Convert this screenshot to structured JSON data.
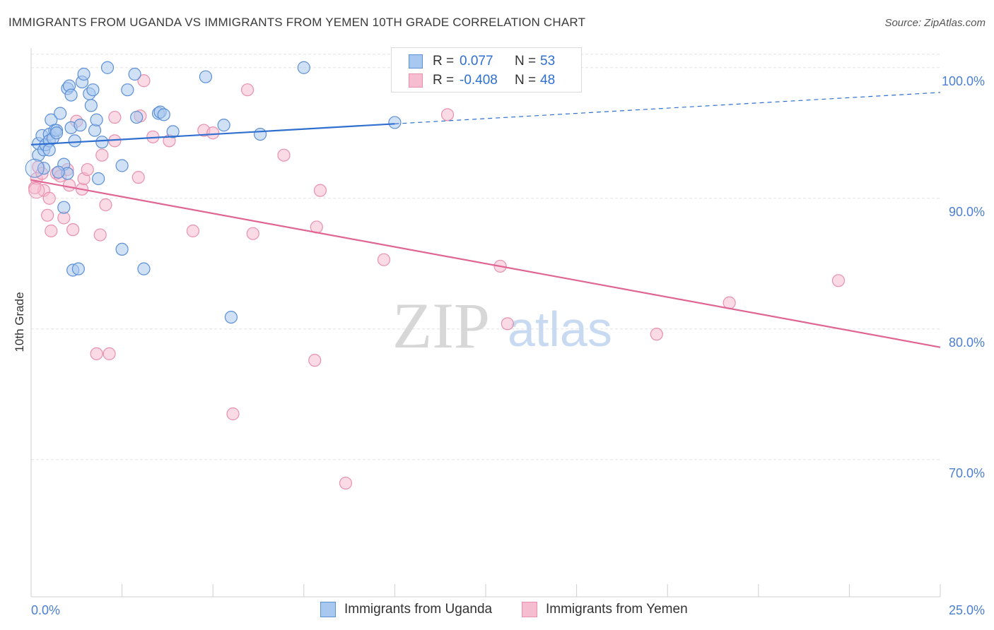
{
  "header": {
    "title": "IMMIGRANTS FROM UGANDA VS IMMIGRANTS FROM YEMEN 10TH GRADE CORRELATION CHART",
    "source": "Source: ZipAtlas.com"
  },
  "legend": {
    "rows": [
      {
        "r_label": "R =",
        "r_value": "0.077",
        "n_label": "N =",
        "n_value": "53"
      },
      {
        "r_label": "R =",
        "r_value": "-0.408",
        "n_label": "N =",
        "n_value": "48"
      }
    ]
  },
  "watermark": {
    "zip": "ZIP",
    "atlas": "atlas"
  },
  "colors": {
    "uganda_fill": "#a9c8ef",
    "uganda_stroke": "#5b8fd6",
    "uganda_line": "#2f6fd0",
    "yemen_fill": "#f6bcd0",
    "yemen_stroke": "#e890ae",
    "yemen_line": "#e06592",
    "axis_text": "#4a7fd4",
    "grid": "#e3e3e3"
  },
  "chart_data": {
    "type": "scatter",
    "title": "IMMIGRANTS FROM UGANDA VS IMMIGRANTS FROM YEMEN 10TH GRADE CORRELATION CHART",
    "xlabel": "",
    "ylabel": "10th Grade",
    "xlim": [
      0,
      25
    ],
    "ylim": [
      59.5,
      101.5
    ],
    "x_tick_labels": [
      "0.0%",
      "25.0%"
    ],
    "y_ticks": [
      70,
      80,
      90,
      100
    ],
    "y_tick_labels": [
      "70.0%",
      "80.0%",
      "90.0%",
      "100.0%"
    ],
    "grid": true,
    "legend_position": "bottom",
    "series": [
      {
        "name": "Immigrants from Uganda",
        "r": 0.077,
        "n": 53,
        "trend": {
          "x0": 0,
          "y0": 94.1,
          "x_solid_end": 10,
          "y_solid_end": 95.7,
          "x1": 25,
          "y1": 98.1
        },
        "points": [
          [
            0.2,
            94.2
          ],
          [
            0.2,
            93.3
          ],
          [
            0.3,
            94.8
          ],
          [
            0.35,
            93.7
          ],
          [
            0.4,
            94.1
          ],
          [
            0.5,
            94.9
          ],
          [
            0.5,
            94.4
          ],
          [
            0.5,
            93.7
          ],
          [
            0.55,
            96.0
          ],
          [
            0.6,
            94.6
          ],
          [
            0.65,
            95.2
          ],
          [
            0.7,
            95.2
          ],
          [
            0.7,
            95.0
          ],
          [
            0.8,
            96.5
          ],
          [
            0.9,
            92.6
          ],
          [
            0.9,
            89.3
          ],
          [
            1.0,
            91.9
          ],
          [
            1.0,
            98.4
          ],
          [
            1.05,
            98.6
          ],
          [
            1.1,
            97.9
          ],
          [
            1.1,
            95.4
          ],
          [
            1.2,
            94.4
          ],
          [
            1.35,
            95.6
          ],
          [
            1.4,
            98.9
          ],
          [
            1.45,
            99.5
          ],
          [
            1.6,
            98.0
          ],
          [
            1.65,
            97.1
          ],
          [
            1.7,
            98.3
          ],
          [
            1.75,
            95.2
          ],
          [
            1.8,
            96.0
          ],
          [
            1.85,
            91.5
          ],
          [
            1.95,
            94.3
          ],
          [
            2.1,
            100.0
          ],
          [
            2.5,
            92.5
          ],
          [
            2.5,
            86.1
          ],
          [
            2.65,
            98.3
          ],
          [
            2.85,
            99.5
          ],
          [
            2.9,
            96.2
          ],
          [
            3.1,
            84.6
          ],
          [
            3.5,
            96.5
          ],
          [
            3.55,
            96.6
          ],
          [
            3.65,
            96.4
          ],
          [
            3.9,
            95.1
          ],
          [
            4.8,
            99.3
          ],
          [
            5.3,
            95.6
          ],
          [
            5.5,
            80.9
          ],
          [
            6.3,
            94.9
          ],
          [
            7.5,
            100.0
          ],
          [
            10.0,
            95.8
          ],
          [
            1.15,
            84.5
          ],
          [
            1.3,
            84.6
          ],
          [
            0.75,
            92.0
          ],
          [
            0.35,
            92.3
          ]
        ]
      },
      {
        "name": "Immigrants from Yemen",
        "r": -0.408,
        "n": 48,
        "trend": {
          "x0": 0,
          "y0": 91.4,
          "x1": 25,
          "y1": 78.6
        },
        "points": [
          [
            0.15,
            91.5
          ],
          [
            0.2,
            92.4
          ],
          [
            0.3,
            91.9
          ],
          [
            0.35,
            90.6
          ],
          [
            0.45,
            88.7
          ],
          [
            0.5,
            90.0
          ],
          [
            0.55,
            87.5
          ],
          [
            0.7,
            91.9
          ],
          [
            0.8,
            91.7
          ],
          [
            0.9,
            88.5
          ],
          [
            1.0,
            92.2
          ],
          [
            1.05,
            91.0
          ],
          [
            1.15,
            87.6
          ],
          [
            1.25,
            95.9
          ],
          [
            1.4,
            90.7
          ],
          [
            1.45,
            91.5
          ],
          [
            1.55,
            92.2
          ],
          [
            1.8,
            78.1
          ],
          [
            1.9,
            87.2
          ],
          [
            1.95,
            93.3
          ],
          [
            2.05,
            89.5
          ],
          [
            2.15,
            78.1
          ],
          [
            2.3,
            94.4
          ],
          [
            2.3,
            96.2
          ],
          [
            2.95,
            91.6
          ],
          [
            3.0,
            96.3
          ],
          [
            3.1,
            99.0
          ],
          [
            3.35,
            94.7
          ],
          [
            3.8,
            94.4
          ],
          [
            4.45,
            87.5
          ],
          [
            4.75,
            95.2
          ],
          [
            5.0,
            95.0
          ],
          [
            5.55,
            73.5
          ],
          [
            5.95,
            98.3
          ],
          [
            6.1,
            87.3
          ],
          [
            6.95,
            93.3
          ],
          [
            7.8,
            77.6
          ],
          [
            7.85,
            87.8
          ],
          [
            7.95,
            90.6
          ],
          [
            8.65,
            68.2
          ],
          [
            9.7,
            85.3
          ],
          [
            11.45,
            96.4
          ],
          [
            12.9,
            84.8
          ],
          [
            13.1,
            80.4
          ],
          [
            17.2,
            79.6
          ],
          [
            19.2,
            82.0
          ],
          [
            22.2,
            83.7
          ],
          [
            0.1,
            90.8
          ]
        ]
      }
    ]
  },
  "bottom_legend": {
    "uganda_label": "Immigrants from Uganda",
    "yemen_label": "Immigrants from Yemen"
  }
}
